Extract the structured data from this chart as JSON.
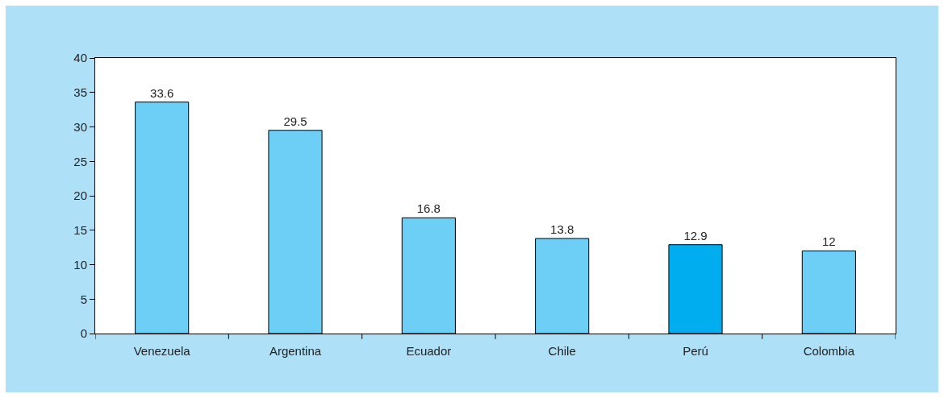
{
  "chart_data": {
    "type": "bar",
    "categories": [
      "Venezuela",
      "Argentina",
      "Ecuador",
      "Chile",
      "Perú",
      "Colombia"
    ],
    "values": [
      33.6,
      29.5,
      16.8,
      13.8,
      12.9,
      12
    ],
    "colors": [
      "#6dcff6",
      "#6dcff6",
      "#6dcff6",
      "#6dcff6",
      "#00aeef",
      "#6dcff6"
    ],
    "ylim": [
      0,
      40
    ],
    "yticks": [
      0,
      5,
      10,
      15,
      20,
      25,
      30,
      35,
      40
    ],
    "data_labels": true
  }
}
